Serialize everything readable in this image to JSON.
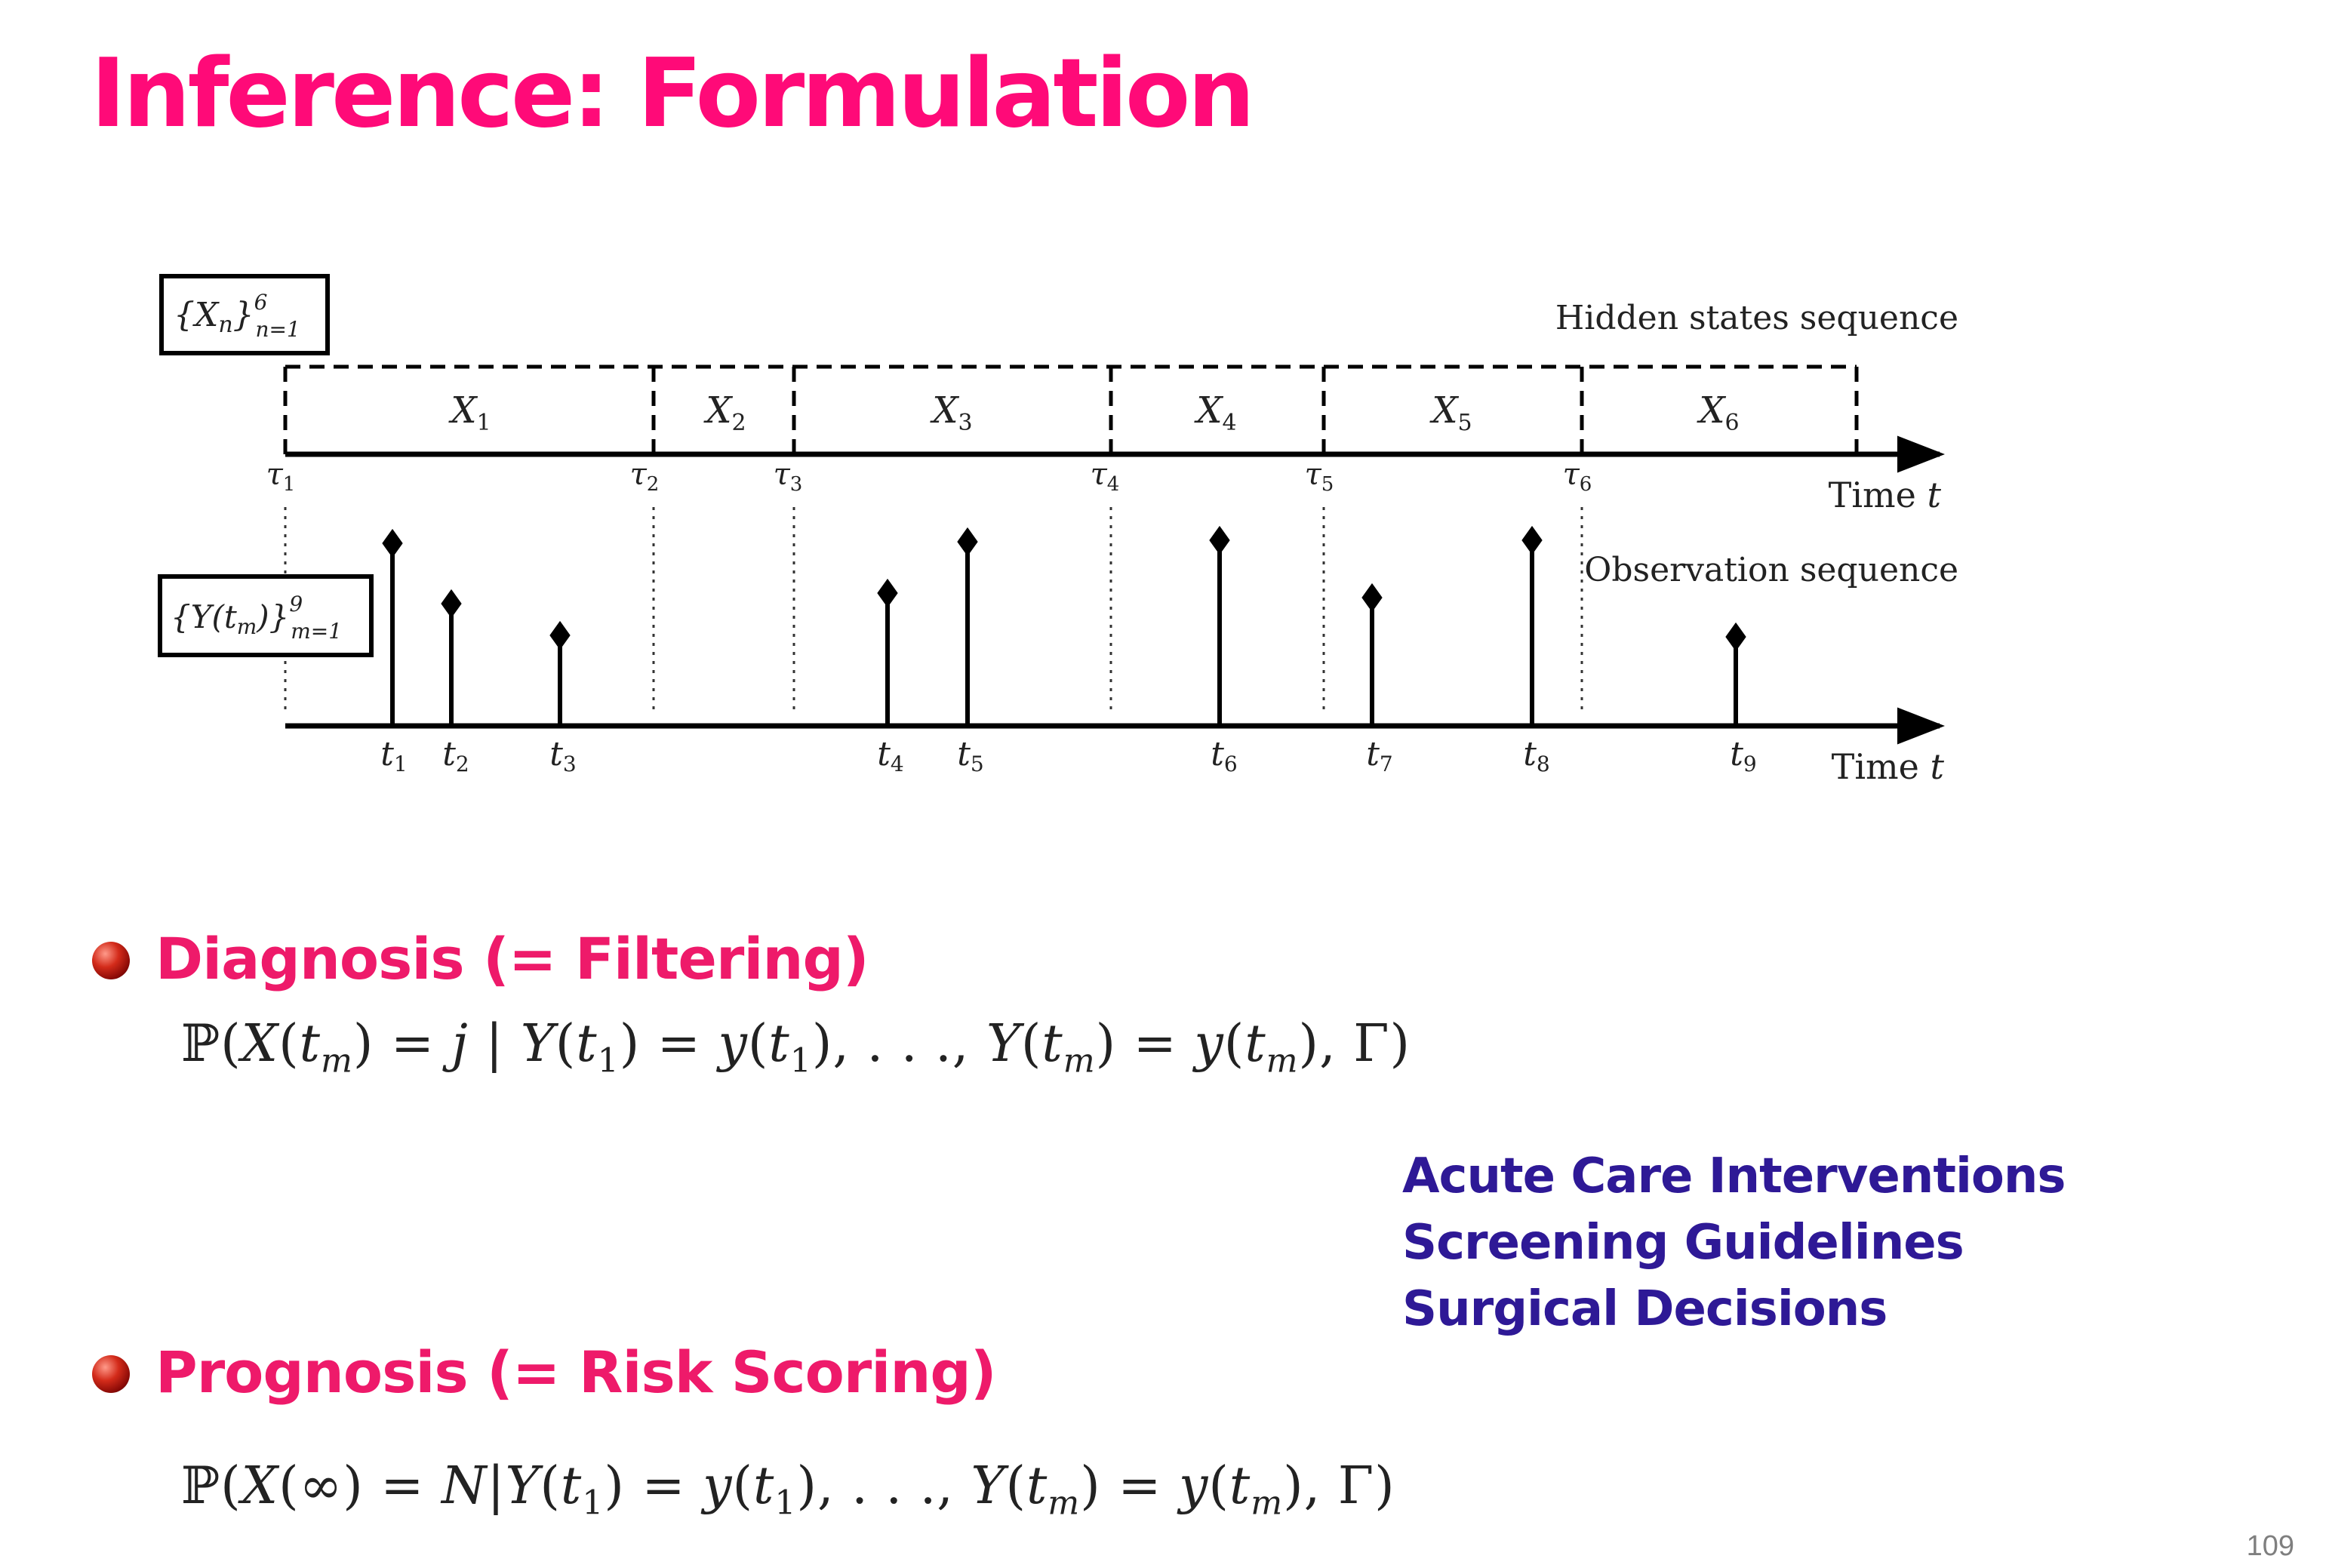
{
  "slide": {
    "title": "Inference: Formulation",
    "page_number": "109"
  },
  "diagram": {
    "hidden_box_label": "{X_n}^6_{n=1}",
    "observation_box_label": "{Y(t_m)}^9_{m=1}",
    "hidden_sequence_label": "Hidden states sequence",
    "observation_sequence_label": "Observation sequence",
    "time_axis_label": "Time t",
    "states": [
      "X1",
      "X2",
      "X3",
      "X4",
      "X5",
      "X6"
    ],
    "change_points": [
      "τ1",
      "τ2",
      "τ3",
      "τ4",
      "τ5",
      "τ6"
    ],
    "observation_times": [
      "t1",
      "t2",
      "t3",
      "t4",
      "t5",
      "t6",
      "t7",
      "t8",
      "t9"
    ]
  },
  "diagnosis": {
    "heading": "Diagnosis (= Filtering)",
    "formula": "ℙ(X(tm) = j | Y(t1) = y(t1), . . ., Y(tm) = y(tm), Γ)"
  },
  "prognosis": {
    "heading": "Prognosis (= Risk Scoring)",
    "formula": "ℙ(X(∞) = N|Y(t1) = y(t1), . . ., Y(tm) = y(tm), Γ)"
  },
  "applications": [
    "Acute Care Interventions",
    "Screening Guidelines",
    "Surgical Decisions"
  ],
  "colors": {
    "title": "#ff0a78",
    "heading": "#ee1a6a",
    "applications": "#2e1996",
    "page_number": "#7f7f7f"
  }
}
